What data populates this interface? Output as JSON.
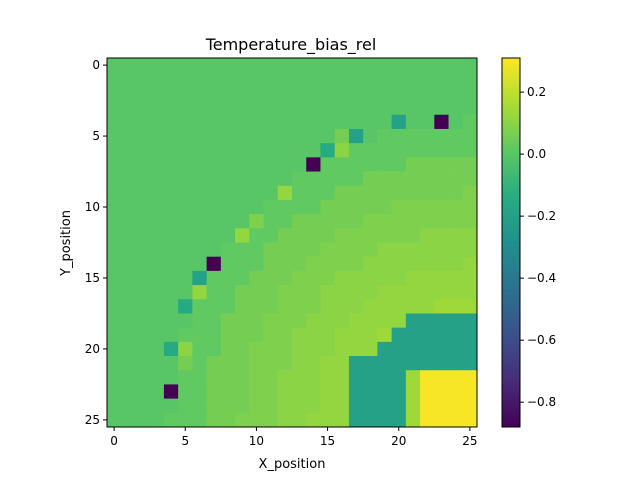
{
  "chart_data": {
    "type": "heatmap",
    "title": "Temperature_bias_rel",
    "xlabel": "X_position",
    "ylabel": "Y_position",
    "x_range": [
      -0.5,
      25.5
    ],
    "y_range": [
      25.5,
      -0.5
    ],
    "y_inverted": true,
    "xticks": [
      0,
      5,
      10,
      15,
      20,
      25
    ],
    "yticks": [
      0,
      5,
      10,
      15,
      20,
      25
    ],
    "grid": false,
    "colormap": "viridis",
    "colorbar": {
      "vmin": -0.88,
      "vmax": 0.31,
      "ticks": [
        -0.8,
        -0.6,
        -0.4,
        -0.2,
        0.0,
        0.2
      ],
      "tick_labels": [
        "−0.8",
        "−0.6",
        "−0.4",
        "−0.2",
        "0.0",
        "0.2"
      ]
    },
    "rows": 26,
    "cols": 26,
    "background_value": 0.0,
    "arc_values": [
      0.0,
      0.02,
      0.06,
      0.08,
      0.1,
      0.12,
      0.14
    ],
    "regions": [
      {
        "rows": [
          18,
          21
        ],
        "cols": [
          21,
          25
        ],
        "value": -0.2
      },
      {
        "rows": [
          19,
          21
        ],
        "cols": [
          20,
          20
        ],
        "value": -0.2
      },
      {
        "rows": [
          20,
          21
        ],
        "cols": [
          19,
          19
        ],
        "value": -0.2
      },
      {
        "rows": [
          21,
          25
        ],
        "cols": [
          18,
          20
        ],
        "value": -0.2
      },
      {
        "rows": [
          21,
          25
        ],
        "cols": [
          17,
          17
        ],
        "value": -0.2
      },
      {
        "rows": [
          22,
          25
        ],
        "cols": [
          22,
          25
        ],
        "value": 0.3
      }
    ],
    "special_cells": [
      {
        "row": 4,
        "col": 20,
        "value": -0.2
      },
      {
        "row": 4,
        "col": 23,
        "value": -0.88
      },
      {
        "row": 5,
        "col": 17,
        "value": -0.2
      },
      {
        "row": 6,
        "col": 15,
        "value": -0.15
      },
      {
        "row": 7,
        "col": 14,
        "value": -0.88
      },
      {
        "row": 14,
        "col": 7,
        "value": -0.88
      },
      {
        "row": 15,
        "col": 6,
        "value": -0.2
      },
      {
        "row": 17,
        "col": 5,
        "value": -0.15
      },
      {
        "row": 20,
        "col": 4,
        "value": -0.15
      },
      {
        "row": 23,
        "col": 4,
        "value": -0.88
      },
      {
        "row": 5,
        "col": 16,
        "value": 0.06
      },
      {
        "row": 6,
        "col": 16,
        "value": 0.1
      },
      {
        "row": 9,
        "col": 12,
        "value": 0.12
      },
      {
        "row": 11,
        "col": 10,
        "value": 0.08
      },
      {
        "row": 12,
        "col": 9,
        "value": 0.12
      },
      {
        "row": 16,
        "col": 6,
        "value": 0.12
      },
      {
        "row": 20,
        "col": 5,
        "value": 0.1
      },
      {
        "row": 21,
        "col": 5,
        "value": 0.06
      }
    ]
  }
}
